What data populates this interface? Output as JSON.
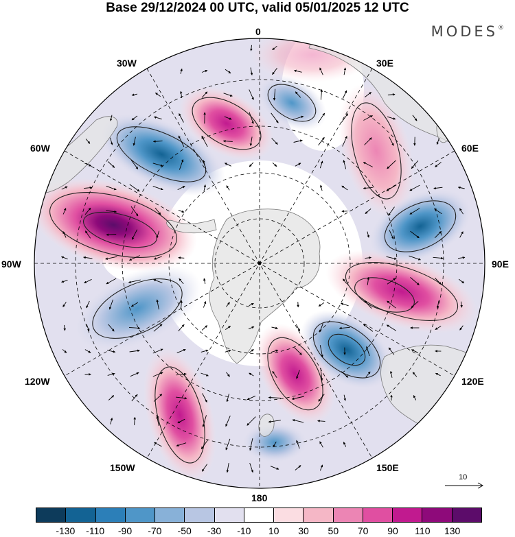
{
  "header": {
    "title": "Base 29/12/2024 00 UTC, valid 05/01/2025 12 UTC",
    "brand": "MODES",
    "brand_mark": "®"
  },
  "map": {
    "projection": "south polar stereographic",
    "longitude_labels": [
      "0",
      "30E",
      "60E",
      "90E",
      "120E",
      "150E",
      "180",
      "150W",
      "120W",
      "90W",
      "60W",
      "30W"
    ],
    "reference_vector_label": "10",
    "colors": {
      "land": "#e6e6e6",
      "coast": "#777777",
      "grid": "#000000",
      "vectors": "#000000"
    }
  },
  "colorbar": {
    "ticks": [
      "-130",
      "-110",
      "-90",
      "-70",
      "-50",
      "-30",
      "-10",
      "10",
      "30",
      "50",
      "70",
      "90",
      "110",
      "130"
    ],
    "colors": [
      "#0d3b5b",
      "#136394",
      "#2c7fb8",
      "#4f96c8",
      "#88b1d8",
      "#b8c6e3",
      "#e2e0ef",
      "#ffffff",
      "#fbdde2",
      "#f5b7c6",
      "#ec85b4",
      "#e04fa1",
      "#c11a8f",
      "#8e0a7a",
      "#5c0c6a"
    ]
  }
}
